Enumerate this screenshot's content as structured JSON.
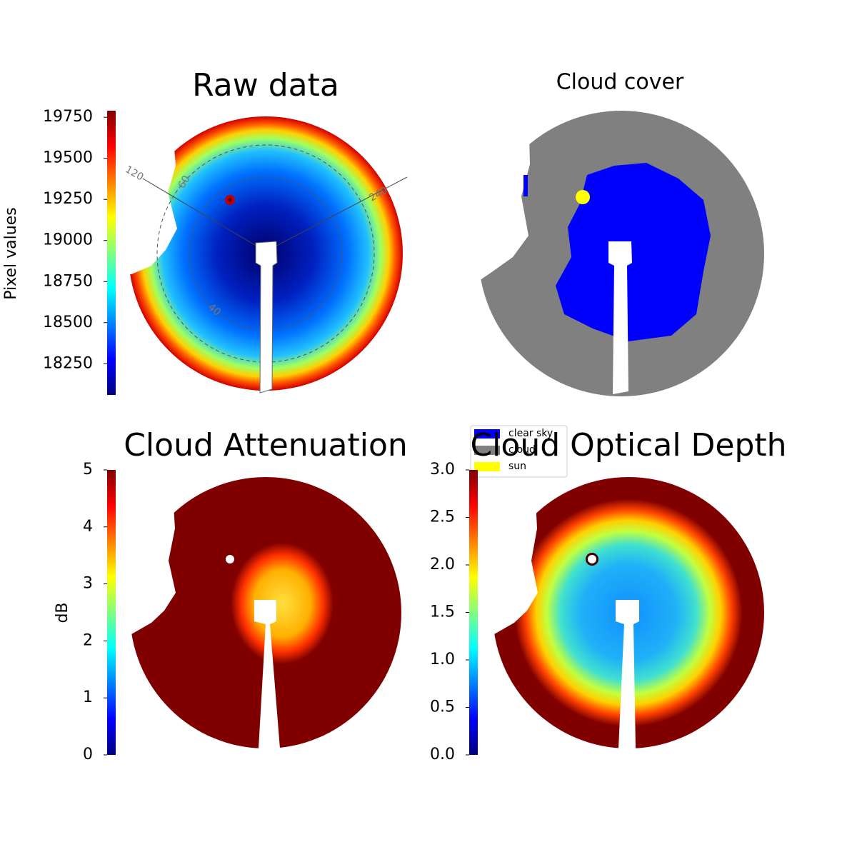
{
  "chart_data": [
    {
      "type": "image",
      "title": "Raw data",
      "colorbar_label": "Pixel values",
      "colormap": "jet",
      "ylim": [
        18060,
        19790
      ],
      "yticks": [
        18250,
        18500,
        18750,
        19000,
        19250,
        19500,
        19750
      ],
      "annotations": [
        "120",
        "60",
        "240",
        "40"
      ]
    },
    {
      "type": "image",
      "title": "Cloud cover",
      "legend": [
        {
          "name": "clear sky",
          "color": "#0000ff"
        },
        {
          "name": "cloud",
          "color": "#808080"
        },
        {
          "name": "sun",
          "color": "#ffff00"
        }
      ]
    },
    {
      "type": "image",
      "title": "Cloud Attenuation",
      "colorbar_label": "dB",
      "colormap": "jet",
      "ylim": [
        0,
        5
      ],
      "yticks": [
        0,
        1,
        2,
        3,
        4,
        5
      ]
    },
    {
      "type": "image",
      "title": "Cloud Optical Depth",
      "colormap": "jet",
      "ylim": [
        0,
        3
      ],
      "yticks": [
        {
          "value": 0,
          "label": "0.0"
        },
        {
          "value": 0.5,
          "label": "0.5"
        },
        {
          "value": 1,
          "label": "1.0"
        },
        {
          "value": 1.5,
          "label": "1.5"
        },
        {
          "value": 2,
          "label": "2.0"
        },
        {
          "value": 2.5,
          "label": "2.5"
        },
        {
          "value": 3,
          "label": "3.0"
        }
      ]
    }
  ]
}
